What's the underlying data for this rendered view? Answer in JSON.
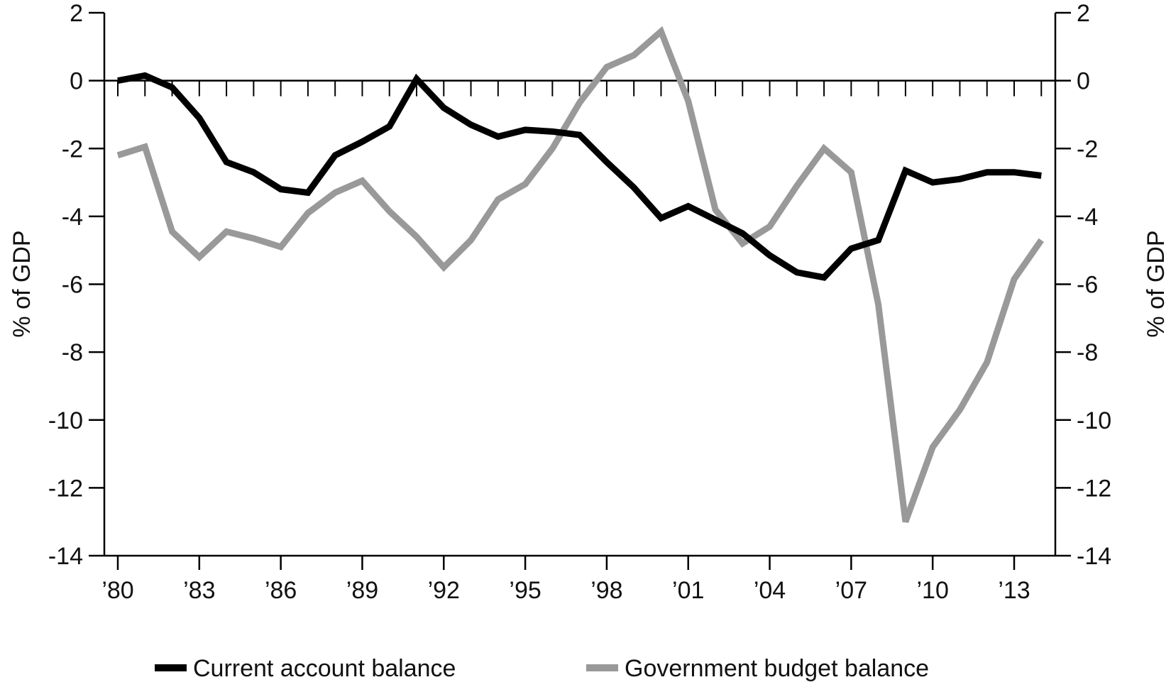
{
  "chart_data": {
    "type": "line",
    "title": "",
    "xlabel": "",
    "ylabel": "% of GDP",
    "ylabel_right": "% of GDP",
    "ylim": [
      -14,
      2
    ],
    "yticks": [
      "2",
      "0",
      "-2",
      "-4",
      "-6",
      "-8",
      "-10",
      "-12",
      "-14"
    ],
    "ytick_values": [
      2,
      0,
      -2,
      -4,
      -6,
      -8,
      -10,
      -12,
      -14
    ],
    "x": [
      1980,
      1981,
      1982,
      1983,
      1984,
      1985,
      1986,
      1987,
      1988,
      1989,
      1990,
      1991,
      1992,
      1993,
      1994,
      1995,
      1996,
      1997,
      1998,
      1999,
      2000,
      2001,
      2002,
      2003,
      2004,
      2005,
      2006,
      2007,
      2008,
      2009,
      2010,
      2011,
      2012,
      2013,
      2014
    ],
    "xticks": [
      "’80",
      "’83",
      "’86",
      "’89",
      "’92",
      "’95",
      "’98",
      "’01",
      "’04",
      "’07",
      "’10",
      "’13"
    ],
    "xtick_values": [
      1980,
      1983,
      1986,
      1989,
      1992,
      1995,
      1998,
      2001,
      2004,
      2007,
      2010,
      2013
    ],
    "grid": false,
    "legend_position": "bottom",
    "series": [
      {
        "name": "Current account balance",
        "color": "#000000",
        "values": [
          0.0,
          0.15,
          -0.2,
          -1.1,
          -2.4,
          -2.7,
          -3.2,
          -3.3,
          -2.2,
          -1.8,
          -1.35,
          0.05,
          -0.8,
          -1.3,
          -1.65,
          -1.45,
          -1.5,
          -1.6,
          -2.4,
          -3.15,
          -4.05,
          -3.7,
          -4.1,
          -4.5,
          -5.15,
          -5.65,
          -5.8,
          -4.95,
          -4.7,
          -2.65,
          -3.0,
          -2.9,
          -2.7,
          -2.7,
          -2.8
        ]
      },
      {
        "name": "Government budget balance",
        "color": "#999999",
        "values": [
          -2.2,
          -1.95,
          -4.45,
          -5.2,
          -4.45,
          -4.65,
          -4.9,
          -3.9,
          -3.3,
          -2.95,
          -3.85,
          -4.6,
          -5.5,
          -4.7,
          -3.5,
          -3.05,
          -2.0,
          -0.65,
          0.4,
          0.75,
          1.45,
          -0.6,
          -3.8,
          -4.8,
          -4.3,
          -3.1,
          -2.0,
          -2.7,
          -6.6,
          -13.0,
          -10.8,
          -9.7,
          -8.3,
          -5.85,
          -4.7
        ]
      }
    ]
  }
}
